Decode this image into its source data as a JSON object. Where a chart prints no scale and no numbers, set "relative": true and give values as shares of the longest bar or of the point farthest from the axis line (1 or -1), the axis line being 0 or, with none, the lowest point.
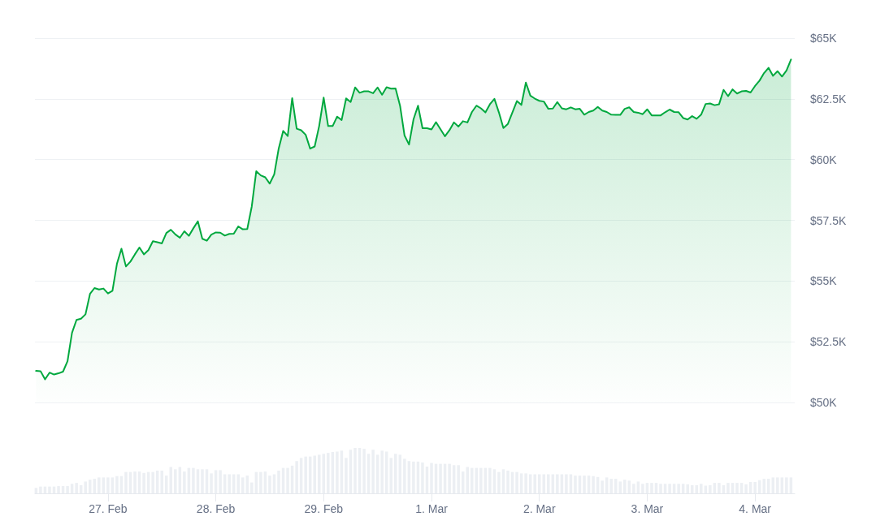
{
  "chart_data": [
    {
      "type": "area",
      "color": "#00a83e",
      "grid": "y",
      "tick_labels": "y",
      "xlim": [
        "--02-26T07:45",
        "--03-04T08:50"
      ],
      "ylim": [
        50000,
        65000
      ],
      "yticks": [
        {
          "value": 50000,
          "label": "$50K"
        },
        {
          "value": 52500,
          "label": "$52.5K"
        },
        {
          "value": 55000,
          "label": "$55K"
        },
        {
          "value": 57500,
          "label": "$57.5K"
        },
        {
          "value": 60000,
          "label": "$60K"
        },
        {
          "value": 62500,
          "label": "$62.5K"
        },
        {
          "value": 65000,
          "label": "$65K"
        }
      ],
      "x": [
        "--02-26T08:00",
        "--02-26T09:00",
        "--02-26T10:00",
        "--02-26T11:00",
        "--02-26T12:00",
        "--02-26T13:00",
        "--02-26T14:00",
        "--02-26T15:00",
        "--02-26T16:00",
        "--02-26T17:00",
        "--02-26T18:00",
        "--02-26T19:00",
        "--02-26T20:00",
        "--02-26T21:00",
        "--02-26T22:00",
        "--02-26T23:00",
        "--02-27T00:00",
        "--02-27T01:00",
        "--02-27T02:00",
        "--02-27T03:00",
        "--02-27T04:00",
        "--02-27T05:00",
        "--02-27T06:00",
        "--02-27T07:00",
        "--02-27T08:00",
        "--02-27T09:00",
        "--02-27T10:00",
        "--02-27T11:00",
        "--02-27T12:00",
        "--02-27T13:00",
        "--02-27T14:00",
        "--02-27T15:00",
        "--02-27T16:00",
        "--02-27T17:00",
        "--02-27T18:00",
        "--02-27T19:00",
        "--02-27T20:00",
        "--02-27T21:00",
        "--02-27T22:00",
        "--02-27T23:00",
        "--02-28T00:00",
        "--02-28T01:00",
        "--02-28T02:00",
        "--02-28T03:00",
        "--02-28T04:00",
        "--02-28T05:00",
        "--02-28T06:00",
        "--02-28T07:00",
        "--02-28T08:00",
        "--02-28T09:00",
        "--02-28T10:00",
        "--02-28T11:00",
        "--02-28T12:00",
        "--02-28T13:00",
        "--02-28T14:00",
        "--02-28T15:00",
        "--02-28T16:00",
        "--02-28T17:00",
        "--02-28T18:00",
        "--02-28T19:00",
        "--02-28T20:00",
        "--02-28T21:00",
        "--02-28T22:00",
        "--02-28T23:00",
        "--02-29T00:00",
        "--02-29T01:00",
        "--02-29T02:00",
        "--02-29T03:00",
        "--02-29T04:00",
        "--02-29T05:00",
        "--02-29T06:00",
        "--02-29T07:00",
        "--02-29T08:00",
        "--02-29T09:00",
        "--02-29T10:00",
        "--02-29T11:00",
        "--02-29T12:00",
        "--02-29T13:00",
        "--02-29T14:00",
        "--02-29T15:00",
        "--02-29T16:00",
        "--02-29T17:00",
        "--02-29T18:00",
        "--02-29T19:00",
        "--02-29T20:00",
        "--02-29T21:00",
        "--02-29T22:00",
        "--02-29T23:00",
        "--03-01T00:00",
        "--03-01T01:00",
        "--03-01T02:00",
        "--03-01T03:00",
        "--03-01T04:00",
        "--03-01T05:00",
        "--03-01T06:00",
        "--03-01T07:00",
        "--03-01T08:00",
        "--03-01T09:00",
        "--03-01T10:00",
        "--03-01T11:00",
        "--03-01T12:00",
        "--03-01T13:00",
        "--03-01T14:00",
        "--03-01T15:00",
        "--03-01T16:00",
        "--03-01T17:00",
        "--03-01T18:00",
        "--03-01T19:00",
        "--03-01T20:00",
        "--03-01T21:00",
        "--03-01T22:00",
        "--03-01T23:00",
        "--03-02T00:00",
        "--03-02T01:00",
        "--03-02T02:00",
        "--03-02T03:00",
        "--03-02T04:00",
        "--03-02T05:00",
        "--03-02T06:00",
        "--03-02T07:00",
        "--03-02T08:00",
        "--03-02T09:00",
        "--03-02T10:00",
        "--03-02T11:00",
        "--03-02T12:00",
        "--03-02T13:00",
        "--03-02T14:00",
        "--03-02T15:00",
        "--03-02T16:00",
        "--03-02T17:00",
        "--03-02T18:00",
        "--03-02T19:00",
        "--03-02T20:00",
        "--03-02T21:00",
        "--03-02T22:00",
        "--03-02T23:00",
        "--03-03T00:00",
        "--03-03T01:00",
        "--03-03T02:00",
        "--03-03T03:00",
        "--03-03T04:00",
        "--03-03T05:00",
        "--03-03T06:00",
        "--03-03T07:00",
        "--03-03T08:00",
        "--03-03T09:00",
        "--03-03T10:00",
        "--03-03T11:00",
        "--03-03T12:00",
        "--03-03T13:00",
        "--03-03T14:00",
        "--03-03T15:00",
        "--03-03T16:00",
        "--03-03T17:00",
        "--03-03T18:00",
        "--03-03T19:00",
        "--03-03T20:00",
        "--03-03T21:00",
        "--03-03T22:00",
        "--03-03T23:00",
        "--03-04T00:00",
        "--03-04T01:00",
        "--03-04T02:00",
        "--03-04T03:00",
        "--03-04T04:00",
        "--03-04T05:00",
        "--03-04T06:00",
        "--03-04T07:00",
        "--03-04T08:00"
      ],
      "values": [
        51300,
        51290,
        50950,
        51230,
        51150,
        51200,
        51270,
        51700,
        52870,
        53400,
        53450,
        53630,
        54470,
        54710,
        54650,
        54690,
        54490,
        54600,
        55710,
        56330,
        55600,
        55800,
        56100,
        56380,
        56100,
        56270,
        56640,
        56600,
        56550,
        56980,
        57110,
        56920,
        56780,
        57050,
        56860,
        57170,
        57460,
        56740,
        56660,
        56910,
        57000,
        56990,
        56870,
        56940,
        56950,
        57250,
        57130,
        57140,
        58070,
        59520,
        59350,
        59270,
        59010,
        59390,
        60460,
        61180,
        60970,
        62530,
        61270,
        61210,
        61020,
        60450,
        60540,
        61380,
        62550,
        61380,
        61380,
        61770,
        61630,
        62520,
        62370,
        62970,
        62750,
        62810,
        62810,
        62730,
        62970,
        62670,
        62980,
        62920,
        62930,
        62220,
        60990,
        60620,
        61660,
        62220,
        61290,
        61290,
        61240,
        61540,
        61250,
        60960,
        61210,
        61530,
        61360,
        61580,
        61530,
        61960,
        62220,
        62110,
        61940,
        62280,
        62500,
        61940,
        61300,
        61470,
        61940,
        62410,
        62250,
        63170,
        62630,
        62510,
        62420,
        62390,
        62090,
        62100,
        62370,
        62110,
        62070,
        62150,
        62070,
        62090,
        61850,
        61960,
        62020,
        62170,
        62020,
        61960,
        61850,
        61840,
        61840,
        62090,
        62150,
        61960,
        61930,
        61870,
        62070,
        61820,
        61820,
        61820,
        61950,
        62060,
        61960,
        61950,
        61710,
        61650,
        61790,
        61680,
        61850,
        62290,
        62310,
        62240,
        62280,
        62870,
        62610,
        62890,
        62720,
        62810,
        62830,
        62760,
        63030,
        63250,
        63560,
        63780,
        63450,
        63640,
        63420,
        63670,
        64120
      ]
    },
    {
      "type": "bar",
      "relative": true,
      "color": "#eceff3",
      "xlim": [
        "--02-26T07:45",
        "--03-04T08:50"
      ],
      "xticks": [
        {
          "value": "--02-27",
          "label": "27. Feb"
        },
        {
          "value": "--02-28",
          "label": "28. Feb"
        },
        {
          "value": "--02-29",
          "label": "29. Feb"
        },
        {
          "value": "--03-01",
          "label": "1. Mar"
        },
        {
          "value": "--03-02",
          "label": "2. Mar"
        },
        {
          "value": "--03-03",
          "label": "3. Mar"
        },
        {
          "value": "--03-04",
          "label": "4. Mar"
        }
      ],
      "x": [
        "--02-26T08:00",
        "--02-26T09:00",
        "--02-26T10:00",
        "--02-26T11:00",
        "--02-26T12:00",
        "--02-26T13:00",
        "--02-26T14:00",
        "--02-26T15:00",
        "--02-26T16:00",
        "--02-26T17:00",
        "--02-26T18:00",
        "--02-26T19:00",
        "--02-26T20:00",
        "--02-26T21:00",
        "--02-26T22:00",
        "--02-26T23:00",
        "--02-27T00:00",
        "--02-27T01:00",
        "--02-27T02:00",
        "--02-27T03:00",
        "--02-27T04:00",
        "--02-27T05:00",
        "--02-27T06:00",
        "--02-27T07:00",
        "--02-27T08:00",
        "--02-27T09:00",
        "--02-27T10:00",
        "--02-27T11:00",
        "--02-27T12:00",
        "--02-27T13:00",
        "--02-27T14:00",
        "--02-27T15:00",
        "--02-27T16:00",
        "--02-27T17:00",
        "--02-27T18:00",
        "--02-27T19:00",
        "--02-27T20:00",
        "--02-27T21:00",
        "--02-27T22:00",
        "--02-27T23:00",
        "--02-28T00:00",
        "--02-28T01:00",
        "--02-28T02:00",
        "--02-28T03:00",
        "--02-28T04:00",
        "--02-28T05:00",
        "--02-28T06:00",
        "--02-28T07:00",
        "--02-28T08:00",
        "--02-28T09:00",
        "--02-28T10:00",
        "--02-28T11:00",
        "--02-28T12:00",
        "--02-28T13:00",
        "--02-28T14:00",
        "--02-28T15:00",
        "--02-28T16:00",
        "--02-28T17:00",
        "--02-28T18:00",
        "--02-28T19:00",
        "--02-28T20:00",
        "--02-28T21:00",
        "--02-28T22:00",
        "--02-28T23:00",
        "--02-29T00:00",
        "--02-29T01:00",
        "--02-29T02:00",
        "--02-29T03:00",
        "--02-29T04:00",
        "--02-29T05:00",
        "--02-29T06:00",
        "--02-29T07:00",
        "--02-29T08:00",
        "--02-29T09:00",
        "--02-29T10:00",
        "--02-29T11:00",
        "--02-29T12:00",
        "--02-29T13:00",
        "--02-29T14:00",
        "--02-29T15:00",
        "--02-29T16:00",
        "--02-29T17:00",
        "--02-29T18:00",
        "--02-29T19:00",
        "--02-29T20:00",
        "--02-29T21:00",
        "--02-29T22:00",
        "--02-29T23:00",
        "--03-01T00:00",
        "--03-01T01:00",
        "--03-01T02:00",
        "--03-01T03:00",
        "--03-01T04:00",
        "--03-01T05:00",
        "--03-01T06:00",
        "--03-01T07:00",
        "--03-01T08:00",
        "--03-01T09:00",
        "--03-01T10:00",
        "--03-01T11:00",
        "--03-01T12:00",
        "--03-01T13:00",
        "--03-01T14:00",
        "--03-01T15:00",
        "--03-01T16:00",
        "--03-01T17:00",
        "--03-01T18:00",
        "--03-01T19:00",
        "--03-01T20:00",
        "--03-01T21:00",
        "--03-01T22:00",
        "--03-01T23:00",
        "--03-02T00:00",
        "--03-02T01:00",
        "--03-02T02:00",
        "--03-02T03:00",
        "--03-02T04:00",
        "--03-02T05:00",
        "--03-02T06:00",
        "--03-02T07:00",
        "--03-02T08:00",
        "--03-02T09:00",
        "--03-02T10:00",
        "--03-02T11:00",
        "--03-02T12:00",
        "--03-02T13:00",
        "--03-02T14:00",
        "--03-02T15:00",
        "--03-02T16:00",
        "--03-02T17:00",
        "--03-02T18:00",
        "--03-02T19:00",
        "--03-02T20:00",
        "--03-02T21:00",
        "--03-02T22:00",
        "--03-02T23:00",
        "--03-03T00:00",
        "--03-03T01:00",
        "--03-03T02:00",
        "--03-03T03:00",
        "--03-03T04:00",
        "--03-03T05:00",
        "--03-03T06:00",
        "--03-03T07:00",
        "--03-03T08:00",
        "--03-03T09:00",
        "--03-03T10:00",
        "--03-03T11:00",
        "--03-03T12:00",
        "--03-03T13:00",
        "--03-03T14:00",
        "--03-03T15:00",
        "--03-03T16:00",
        "--03-03T17:00",
        "--03-03T18:00",
        "--03-03T19:00",
        "--03-03T20:00",
        "--03-03T21:00",
        "--03-03T22:00",
        "--03-03T23:00",
        "--03-04T00:00",
        "--03-04T01:00",
        "--03-04T02:00",
        "--03-04T03:00",
        "--03-04T04:00",
        "--03-04T05:00",
        "--03-04T06:00",
        "--03-04T07:00",
        "--03-04T08:00"
      ],
      "values": [
        0.12,
        0.15,
        0.15,
        0.15,
        0.15,
        0.16,
        0.16,
        0.16,
        0.21,
        0.23,
        0.18,
        0.26,
        0.3,
        0.32,
        0.35,
        0.35,
        0.35,
        0.35,
        0.38,
        0.38,
        0.47,
        0.47,
        0.48,
        0.48,
        0.45,
        0.47,
        0.47,
        0.5,
        0.5,
        0.39,
        0.58,
        0.53,
        0.58,
        0.48,
        0.56,
        0.56,
        0.53,
        0.53,
        0.53,
        0.44,
        0.51,
        0.51,
        0.42,
        0.42,
        0.42,
        0.42,
        0.35,
        0.39,
        0.24,
        0.47,
        0.47,
        0.48,
        0.39,
        0.42,
        0.5,
        0.56,
        0.56,
        0.61,
        0.71,
        0.78,
        0.81,
        0.81,
        0.83,
        0.85,
        0.87,
        0.89,
        0.91,
        0.92,
        0.94,
        0.78,
        0.96,
        1,
        1,
        0.98,
        0.87,
        0.96,
        0.85,
        0.94,
        0.92,
        0.78,
        0.87,
        0.85,
        0.76,
        0.71,
        0.7,
        0.7,
        0.68,
        0.59,
        0.67,
        0.65,
        0.65,
        0.65,
        0.65,
        0.62,
        0.62,
        0.48,
        0.58,
        0.56,
        0.56,
        0.56,
        0.56,
        0.56,
        0.53,
        0.47,
        0.53,
        0.5,
        0.47,
        0.47,
        0.44,
        0.44,
        0.42,
        0.42,
        0.42,
        0.42,
        0.42,
        0.42,
        0.42,
        0.42,
        0.42,
        0.42,
        0.39,
        0.39,
        0.39,
        0.39,
        0.38,
        0.36,
        0.28,
        0.35,
        0.32,
        0.32,
        0.26,
        0.3,
        0.28,
        0.21,
        0.26,
        0.21,
        0.23,
        0.23,
        0.23,
        0.21,
        0.21,
        0.21,
        0.21,
        0.21,
        0.21,
        0.2,
        0.18,
        0.18,
        0.21,
        0.17,
        0.18,
        0.23,
        0.23,
        0.18,
        0.23,
        0.23,
        0.23,
        0.23,
        0.2,
        0.25,
        0.25,
        0.29,
        0.32,
        0.32,
        0.35,
        0.35,
        0.35,
        0.35,
        0.35
      ]
    }
  ]
}
